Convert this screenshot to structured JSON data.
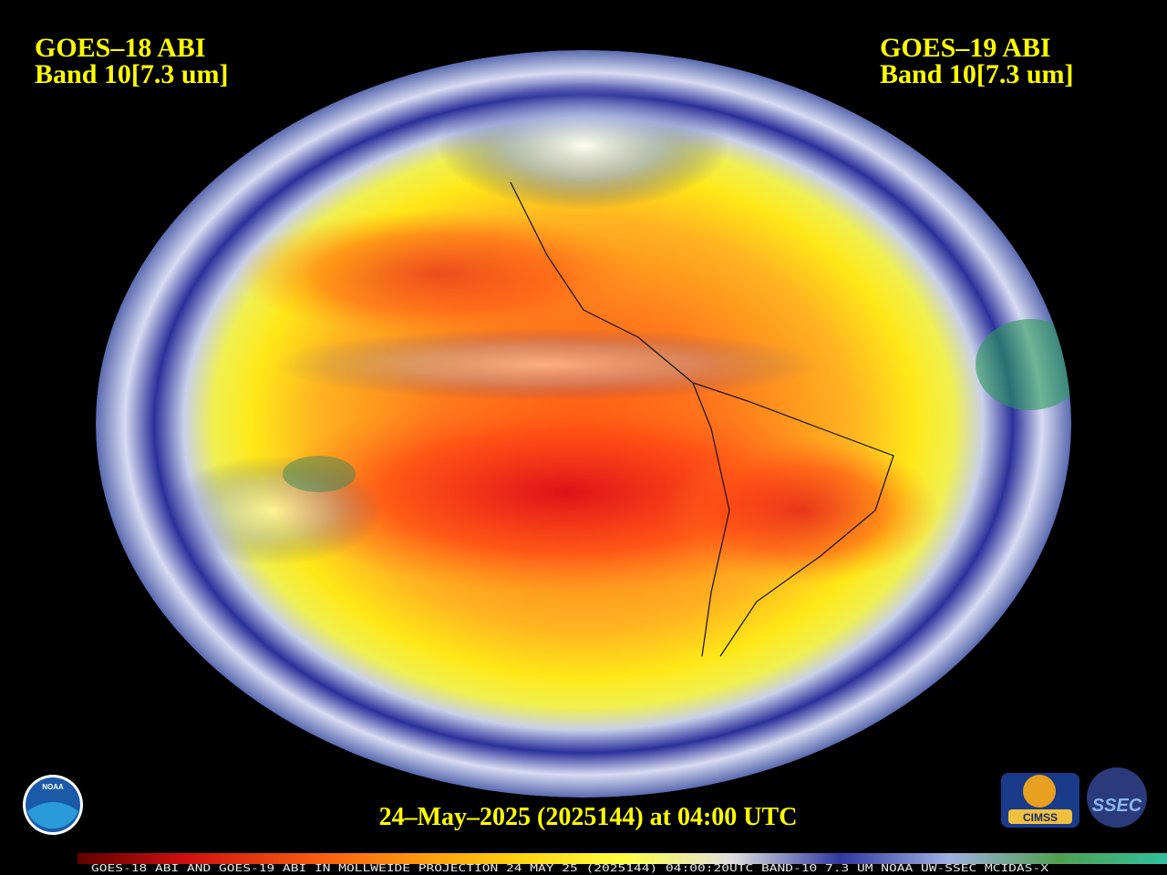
{
  "header": {
    "left": {
      "satellite": "GOES–18 ABI",
      "band": "Band 10[7.3 um]"
    },
    "right": {
      "satellite": "GOES–19 ABI",
      "band": "Band 10[7.3 um]"
    }
  },
  "timestamp": "24–May–2025 (2025144) at 04:00 UTC",
  "color_bar": {
    "caption": "GOES-18 ABI AND GOES-19 ABI IN MOLLWEIDE PROJECTION 24 MAY 25 (2025144) 04:00:20UTC BAND-10 7.3 UM NOAA UW-SSEC MCIDAS-X"
  },
  "logos": {
    "noaa": "NOAA",
    "cimss": "CIMSS",
    "ssec": "SSEC"
  }
}
